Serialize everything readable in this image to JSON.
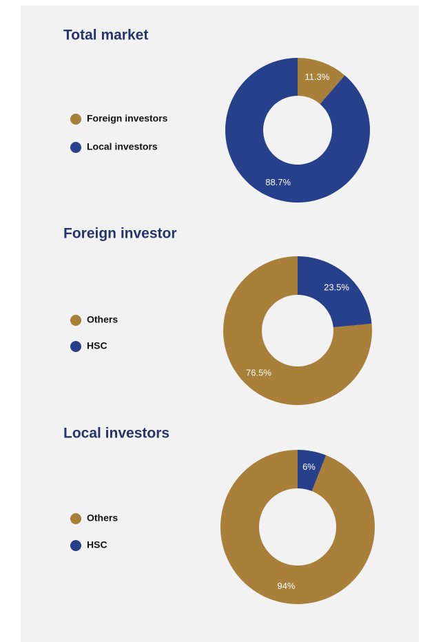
{
  "chart_data": [
    {
      "type": "pie",
      "title": "Total market",
      "categories": [
        "Foreign investors",
        "Local investors"
      ],
      "values": [
        11.3,
        88.7
      ],
      "value_labels": [
        "11.3%",
        "88.7%"
      ],
      "colors": [
        "#a8803a",
        "#27408b"
      ],
      "direction": "clockwise"
    },
    {
      "type": "pie",
      "title": "Foreign investor",
      "categories": [
        "Others",
        "HSC"
      ],
      "values": [
        76.5,
        23.5
      ],
      "value_labels": [
        "76.5%",
        "23.5%"
      ],
      "colors": [
        "#a8803a",
        "#27408b"
      ],
      "direction": "counterclockwise"
    },
    {
      "type": "pie",
      "title": "Local investors",
      "categories": [
        "Others",
        "HSC"
      ],
      "values": [
        94,
        6
      ],
      "value_labels": [
        "94%",
        "6%"
      ],
      "colors": [
        "#a8803a",
        "#27408b"
      ],
      "direction": "counterclockwise"
    }
  ]
}
